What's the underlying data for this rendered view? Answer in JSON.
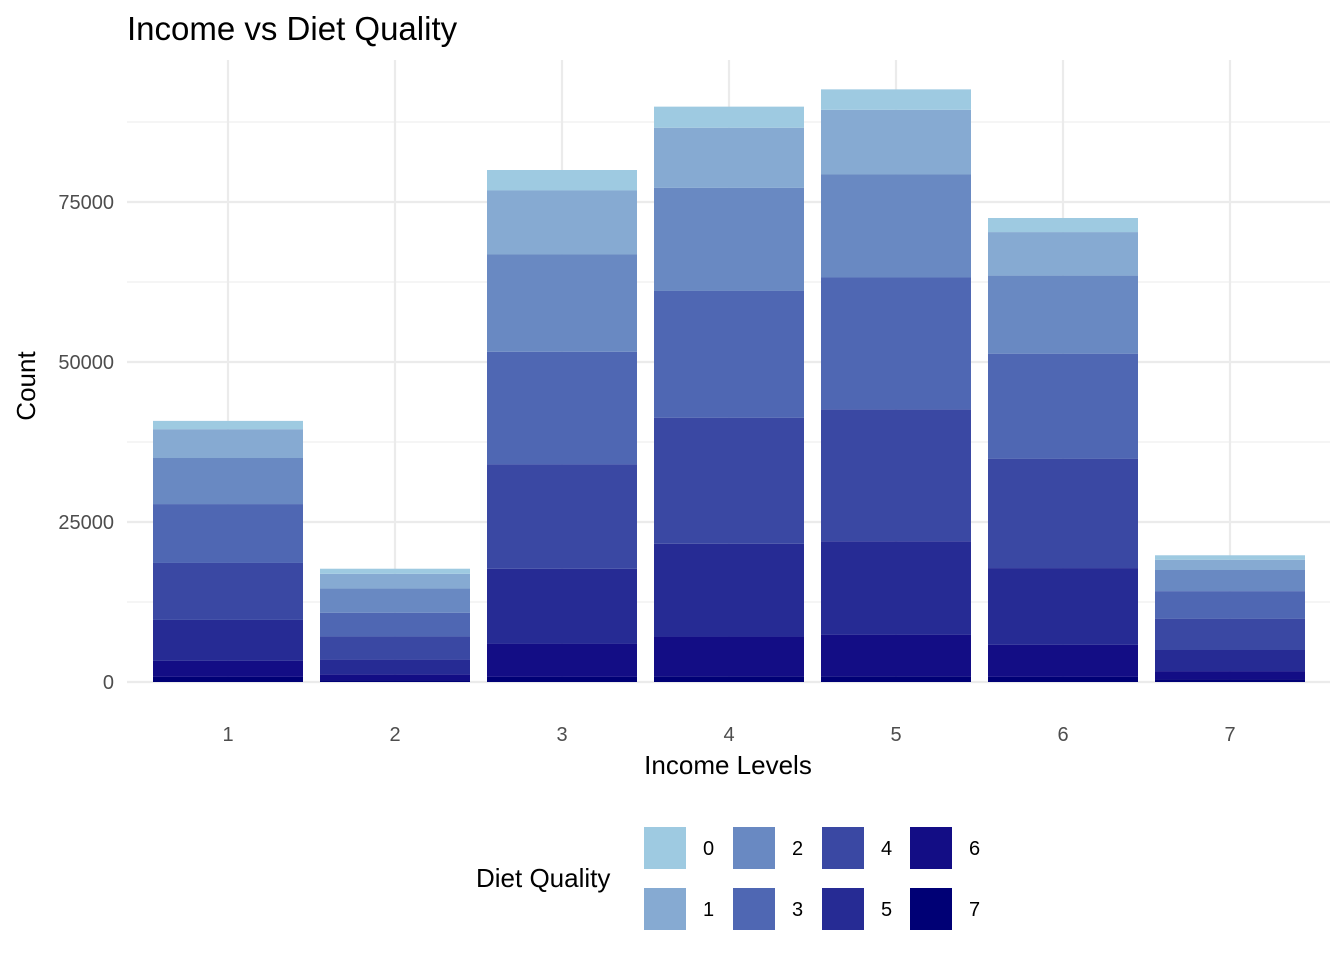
{
  "chart_data": {
    "type": "bar",
    "stacked": true,
    "title": "Income vs Diet Quality",
    "xlabel": "Income Levels",
    "ylabel": "Count",
    "categories": [
      "1",
      "2",
      "3",
      "4",
      "5",
      "6",
      "7"
    ],
    "ylim": [
      0,
      96000
    ],
    "yticks": [
      0,
      25000,
      50000,
      75000
    ],
    "grid": true,
    "legend": {
      "title": "Diet Quality",
      "position": "bottom"
    },
    "series": [
      {
        "name": "0",
        "color": "#9ecae1",
        "values": [
          1300,
          800,
          3200,
          3300,
          3200,
          2200,
          700
        ]
      },
      {
        "name": "1",
        "color": "#86aad2",
        "values": [
          4500,
          2300,
          10000,
          9400,
          10100,
          6800,
          1600
        ]
      },
      {
        "name": "2",
        "color": "#6989c2",
        "values": [
          7200,
          3800,
          15200,
          16100,
          16100,
          12200,
          3300
        ]
      },
      {
        "name": "3",
        "color": "#4f67b3",
        "values": [
          9200,
          3700,
          17600,
          19800,
          20600,
          16400,
          4300
        ]
      },
      {
        "name": "4",
        "color": "#3a48a3",
        "values": [
          8900,
          3600,
          16300,
          19700,
          20600,
          17100,
          4900
        ]
      },
      {
        "name": "5",
        "color": "#262b94",
        "values": [
          6400,
          2300,
          11700,
          14500,
          14600,
          12000,
          3300
        ]
      },
      {
        "name": "6",
        "color": "#130d85",
        "values": [
          2500,
          900,
          5200,
          6200,
          6500,
          5000,
          1300
        ]
      },
      {
        "name": "7",
        "color": "#000075",
        "values": [
          800,
          300,
          800,
          900,
          900,
          800,
          400
        ]
      }
    ]
  }
}
